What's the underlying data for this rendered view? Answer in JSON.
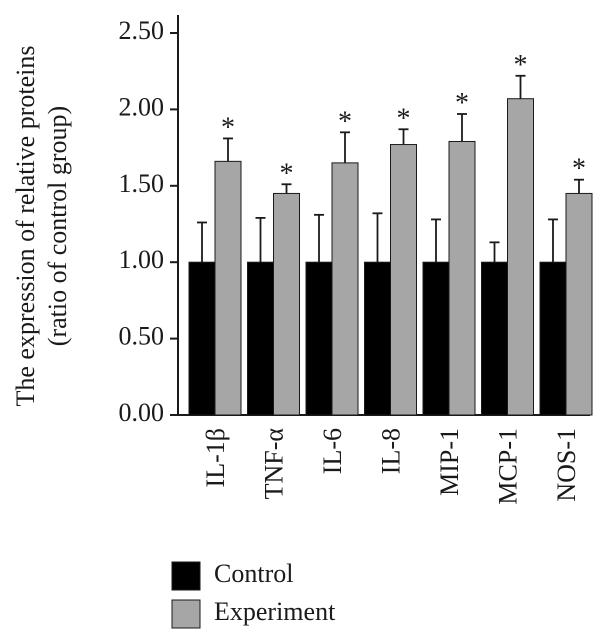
{
  "chart_data": {
    "type": "bar",
    "ylabel_line1": "The expression of relative proteins",
    "ylabel_line2": "(ratio of control group)",
    "ylim": [
      0,
      2.5
    ],
    "yticks": [
      "0.00",
      "0.50",
      "1.00",
      "1.50",
      "2.00",
      "2.50"
    ],
    "ytick_values": [
      0,
      0.5,
      1.0,
      1.5,
      2.0,
      2.5
    ],
    "categories": [
      "IL-1β",
      "TNF-α",
      "IL-6",
      "IL-8",
      "MIP-1",
      "MCP-1",
      "NOS-1"
    ],
    "series": [
      {
        "name": "Control",
        "color": "#000000",
        "values": [
          1.0,
          1.0,
          1.0,
          1.0,
          1.0,
          1.0,
          1.0
        ],
        "errors": [
          0.26,
          0.29,
          0.31,
          0.32,
          0.28,
          0.13,
          0.28
        ]
      },
      {
        "name": "Experiment",
        "color": "#a6a6a6",
        "values": [
          1.66,
          1.45,
          1.65,
          1.77,
          1.79,
          2.07,
          1.45
        ],
        "errors": [
          0.15,
          0.06,
          0.2,
          0.1,
          0.18,
          0.15,
          0.09
        ]
      }
    ],
    "significance_marker": "*",
    "significant": [
      true,
      true,
      true,
      true,
      true,
      true,
      true
    ],
    "legend_position": "bottom-left"
  }
}
